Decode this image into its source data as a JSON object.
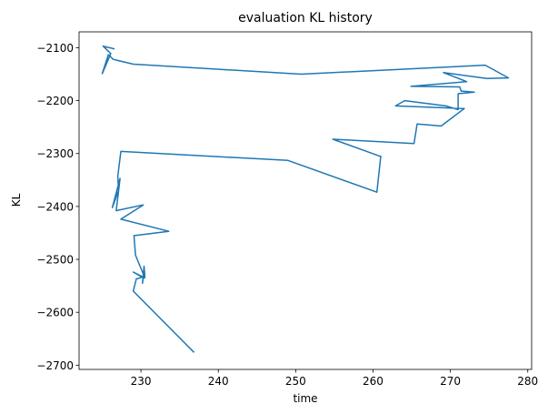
{
  "chart_data": {
    "type": "line",
    "title": "evaluation KL history",
    "xlabel": "time",
    "ylabel": "KL",
    "xlim": [
      222.0,
      280.5
    ],
    "ylim": [
      -2708,
      -2070
    ],
    "xticks": [
      230,
      240,
      250,
      260,
      270,
      280
    ],
    "yticks": [
      -2100,
      -2200,
      -2300,
      -2400,
      -2500,
      -2600,
      -2700
    ],
    "xtick_labels": [
      "230",
      "240",
      "250",
      "260",
      "270",
      "280"
    ],
    "ytick_labels": [
      "−2100",
      "−2200",
      "−2300",
      "−2400",
      "−2500",
      "−2600",
      "−2700"
    ],
    "grid": false,
    "colors": {
      "line": "#1f77b4"
    },
    "series": [
      {
        "x": [
          236.8,
          229.0,
          229.4,
          230.5,
          230.4,
          230.2,
          230.3,
          229.0,
          230.5,
          229.3,
          229.1,
          229.2,
          233.6,
          227.4,
          230.3,
          226.8,
          227.3,
          226.3,
          227.1,
          227.0,
          227.4,
          249.0,
          260.5,
          261.0,
          260.9,
          254.8,
          265.3,
          265.7,
          268.8,
          271.8,
          262.9,
          264.1,
          269.4,
          271.0,
          271.0,
          273.1,
          271.4,
          271.2,
          264.9,
          272.1,
          269.1,
          274.7,
          277.5,
          274.5,
          250.7,
          229.0,
          226.4,
          225.8,
          225.0,
          226.1,
          225.1,
          226.5
        ],
        "y": [
          -2675,
          -2560,
          -2537,
          -2532,
          -2513,
          -2545,
          -2535,
          -2524,
          -2535,
          -2492,
          -2455,
          -2455,
          -2447,
          -2424,
          -2397,
          -2408,
          -2347,
          -2402,
          -2370,
          -2343,
          -2296,
          -2313,
          -2373,
          -2305,
          -2305,
          -2273,
          -2281,
          -2244,
          -2248,
          -2215,
          -2210,
          -2200,
          -2210,
          -2217,
          -2187,
          -2184,
          -2182,
          -2174,
          -2173,
          -2164,
          -2147,
          -2158,
          -2157,
          -2133,
          -2150,
          -2131,
          -2122,
          -2113,
          -2149,
          -2111,
          -2097,
          -2102
        ]
      }
    ]
  }
}
